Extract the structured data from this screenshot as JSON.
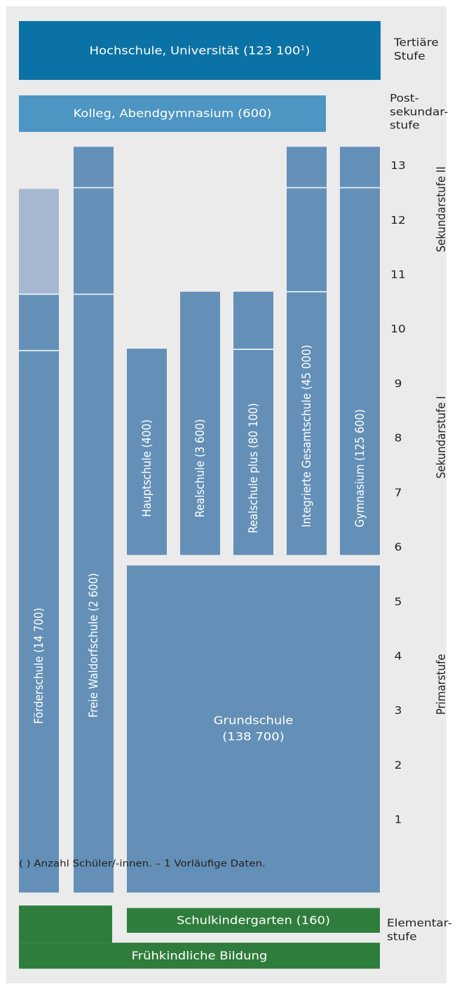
{
  "blocks": {
    "hochschule": "Hochschule, Universität (123 100",
    "hochschule_note": "1",
    "hochschule_close": ")",
    "kolleg": "Kolleg, Abendgymnasium (600)",
    "grundschule_line1": "Grundschule",
    "grundschule_line2": "(138 700)",
    "schulkindergarten": "Schulkindergarten (160)",
    "fruehkindlich": "Frühkindliche Bildung"
  },
  "columns": {
    "foerderschule": "Förderschule (14 700)",
    "waldorf": "Freie Waldorfschule (2 600)",
    "hauptschule": "Hauptschule (400)",
    "realschule": "Realschule (3 600)",
    "realschule_plus": "Realschule plus (80 100)",
    "gesamtschule": "Integrierte Gesamtschule (45 000)",
    "gymnasium": "Gymnasium (125 600)"
  },
  "stages": {
    "tertiaer_1": "Tertiäre",
    "tertiaer_2": "Stufe",
    "post_1": "Post-",
    "post_2": "sekundar-",
    "post_3": "stufe",
    "sek2": "Sekundarstufe II",
    "sek1": "Sekundarstufe I",
    "primar": "Primarstufe",
    "elementar_1": "Elementar-",
    "elementar_2": "stufe"
  },
  "grades": [
    "13",
    "12",
    "11",
    "10",
    "9",
    "8",
    "7",
    "6",
    "5",
    "4",
    "3",
    "2",
    "1"
  ],
  "footnote": "( ) Anzahl Schüler/-innen. – 1 Vorläufige Daten.",
  "colors": {
    "tertiary": "#0a72a4",
    "postsecondary": "#4d95c3",
    "school": "#6490b7",
    "light": "#a5b8d0",
    "elementary": "#2f7d3d",
    "background": "#ebebeb"
  }
}
